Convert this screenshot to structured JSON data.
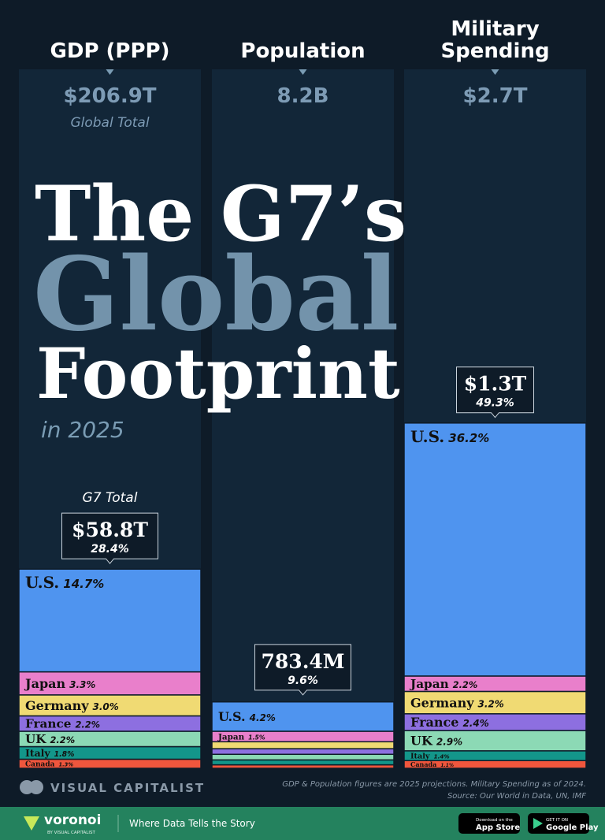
{
  "chart_data": {
    "type": "stacked_bar",
    "title": [
      "The G7’s",
      "Global",
      "Footprint"
    ],
    "subtitle": "in 2025",
    "categories": [
      "GDP (PPP)",
      "Population",
      [
        "Military",
        "Spending"
      ]
    ],
    "global_totals": [
      "$206.9T",
      "8.2B",
      "$2.7T"
    ],
    "global_total_note": "Global Total",
    "g7_total_note": "G7 Total",
    "g7_totals": {
      "labels": [
        "$58.8T",
        "783.4M",
        "$1.3T"
      ],
      "values": [
        28.4,
        9.6,
        49.3
      ],
      "value_labels": [
        "28.4%",
        "9.6%",
        "49.3%"
      ]
    },
    "ylim": [
      0,
      100
    ],
    "series": [
      {
        "name": "U.S.",
        "color": "#4f94ef",
        "values": [
          14.7,
          4.2,
          36.2
        ],
        "value_labels": [
          "14.7%",
          "4.2%",
          "36.2%"
        ]
      },
      {
        "name": "Japan",
        "color": "#e97fcb",
        "values": [
          3.3,
          1.5,
          2.2
        ],
        "value_labels": [
          "3.3%",
          "1.5%",
          "2.2%"
        ]
      },
      {
        "name": "Germany",
        "color": "#f0da73",
        "values": [
          3.0,
          1.0,
          3.2
        ],
        "value_labels": [
          "3.0%",
          null,
          "3.2%"
        ]
      },
      {
        "name": "France",
        "color": "#8d6fe0",
        "values": [
          2.2,
          0.8,
          2.4
        ],
        "value_labels": [
          "2.2%",
          null,
          "2.4%"
        ]
      },
      {
        "name": "UK",
        "color": "#8cd9b5",
        "values": [
          2.2,
          0.8,
          2.9
        ],
        "value_labels": [
          "2.2%",
          null,
          "2.9%"
        ]
      },
      {
        "name": "Italy",
        "color": "#13968a",
        "values": [
          1.8,
          0.7,
          1.4
        ],
        "value_labels": [
          "1.8%",
          null,
          "1.4%"
        ]
      },
      {
        "name": "Canada",
        "color": "#f0563d",
        "values": [
          1.3,
          0.5,
          1.1
        ],
        "value_labels": [
          "1.3%",
          null,
          "1.1%"
        ]
      }
    ],
    "notes": [
      "GDP & Population figures are 2025 projections. Military Spending as of 2024.",
      "Source: Our World in Data, UN, IMF"
    ]
  },
  "brand": "VISUAL CAPITALIST",
  "footer": {
    "logo": "voronoi",
    "logo_sub": "BY VISUAL CAPITALIST",
    "tagline": "Where Data Tells the Story",
    "app_store": [
      "Download on the",
      "App Store"
    ],
    "google_play": [
      "GET IT ON",
      "Google Play"
    ]
  }
}
